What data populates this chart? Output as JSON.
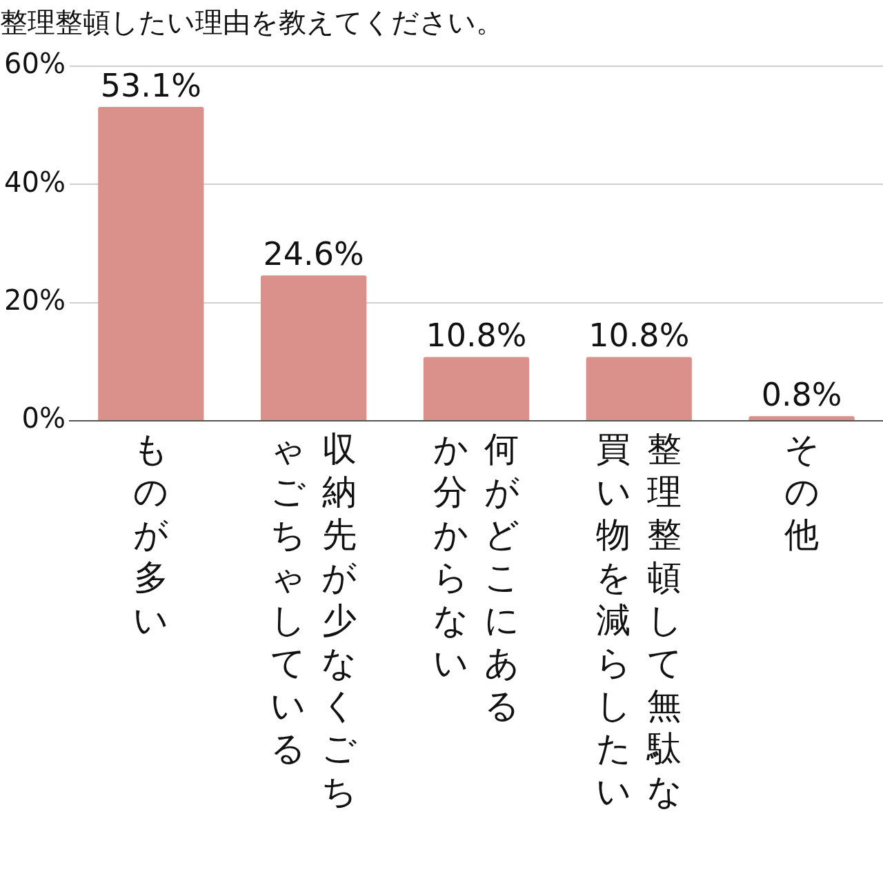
{
  "chart_data": {
    "type": "bar",
    "title": "整理整頓したい理由を教えてください。",
    "categories": [
      "ものが多い",
      "収納先が少なくごちゃごちゃしている",
      "何がどこにあるか分からない",
      "整理整頓して無駄な買い物を減らしたい",
      "その他"
    ],
    "values": [
      53.1,
      24.6,
      10.8,
      10.8,
      0.8
    ],
    "value_labels": [
      "53.1%",
      "24.6%",
      "10.8%",
      "10.8%",
      "0.8%"
    ],
    "color": "#db918b",
    "ylim": [
      0,
      60
    ],
    "yticks": [
      {
        "value": 0,
        "label": "0%"
      },
      {
        "value": 20,
        "label": "20%"
      },
      {
        "value": 40,
        "label": "40%"
      },
      {
        "value": 60,
        "label": "60%"
      }
    ],
    "grid": "y",
    "legend": false
  }
}
